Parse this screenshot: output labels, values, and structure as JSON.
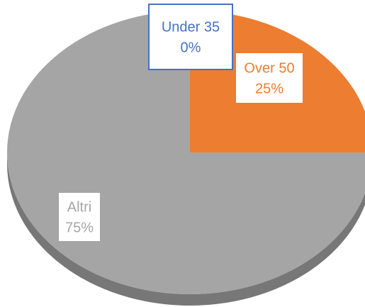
{
  "chart_data": {
    "type": "pie",
    "categories": [
      "Under 35",
      "Over 50",
      "Altri"
    ],
    "values": [
      0,
      25,
      75
    ],
    "value_labels": [
      "0%",
      "25%",
      "75%"
    ],
    "colors": [
      "#4472c4",
      "#ed7d31",
      "#a5a5a5"
    ]
  }
}
